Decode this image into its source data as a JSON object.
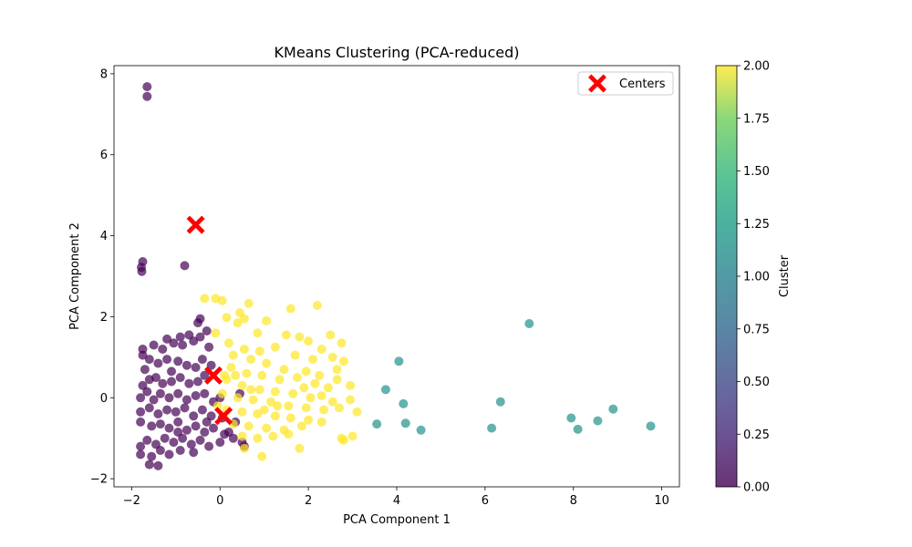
{
  "chart_data": {
    "type": "scatter",
    "title": "KMeans Clustering (PCA-reduced)",
    "xlabel": "PCA Component 1",
    "ylabel": "PCA Component 2",
    "xlim": [
      -2.4,
      10.4
    ],
    "ylim": [
      -2.2,
      8.2
    ],
    "xticks": [
      -2,
      0,
      2,
      4,
      6,
      8,
      10
    ],
    "yticks": [
      -2,
      0,
      2,
      4,
      6,
      8
    ],
    "colorbar": {
      "label": "Cluster",
      "range": [
        0.0,
        2.0
      ],
      "ticks": [
        "0.00",
        "0.25",
        "0.50",
        "0.75",
        "1.00",
        "1.25",
        "1.50",
        "1.75",
        "2.00"
      ]
    },
    "legend": {
      "position": "top-right",
      "entries": [
        "Centers"
      ]
    },
    "series": [
      {
        "cluster": 0,
        "color": "#440154",
        "points": [
          [
            -1.65,
            7.68
          ],
          [
            -1.65,
            7.44
          ],
          [
            -1.75,
            3.36
          ],
          [
            -1.78,
            3.22
          ],
          [
            -1.77,
            3.12
          ],
          [
            -0.8,
            3.26
          ],
          [
            -0.3,
            1.65
          ],
          [
            -0.5,
            1.85
          ],
          [
            -0.45,
            1.95
          ],
          [
            -0.7,
            1.55
          ],
          [
            -0.9,
            1.5
          ],
          [
            -1.2,
            1.45
          ],
          [
            -1.75,
            1.2
          ],
          [
            -1.75,
            1.05
          ],
          [
            -1.5,
            1.3
          ],
          [
            -1.3,
            1.2
          ],
          [
            -1.05,
            1.35
          ],
          [
            -0.85,
            1.3
          ],
          [
            -0.6,
            1.4
          ],
          [
            -0.45,
            1.5
          ],
          [
            -0.25,
            1.25
          ],
          [
            -1.6,
            0.95
          ],
          [
            -1.4,
            0.85
          ],
          [
            -1.2,
            0.95
          ],
          [
            -0.95,
            0.9
          ],
          [
            -0.75,
            0.8
          ],
          [
            -0.55,
            0.75
          ],
          [
            -0.4,
            0.95
          ],
          [
            -0.2,
            0.8
          ],
          [
            -1.75,
            0.3
          ],
          [
            -1.6,
            0.45
          ],
          [
            -1.45,
            0.5
          ],
          [
            -1.3,
            0.35
          ],
          [
            -1.1,
            0.4
          ],
          [
            -0.9,
            0.5
          ],
          [
            -0.7,
            0.35
          ],
          [
            -0.5,
            0.4
          ],
          [
            -0.35,
            0.55
          ],
          [
            -1.8,
            0.0
          ],
          [
            -1.65,
            0.15
          ],
          [
            -1.5,
            -0.05
          ],
          [
            -1.35,
            0.1
          ],
          [
            -1.15,
            0.0
          ],
          [
            -0.95,
            0.1
          ],
          [
            -0.75,
            -0.05
          ],
          [
            -0.55,
            0.05
          ],
          [
            -0.35,
            0.1
          ],
          [
            -0.15,
            -0.1
          ],
          [
            0.0,
            0.0
          ],
          [
            -1.8,
            -0.35
          ],
          [
            -1.6,
            -0.25
          ],
          [
            -1.4,
            -0.4
          ],
          [
            -1.2,
            -0.3
          ],
          [
            -1.0,
            -0.35
          ],
          [
            -0.8,
            -0.25
          ],
          [
            -0.6,
            -0.45
          ],
          [
            -0.4,
            -0.3
          ],
          [
            -0.2,
            -0.45
          ],
          [
            0.05,
            -0.5
          ],
          [
            -1.8,
            -0.6
          ],
          [
            -1.55,
            -0.7
          ],
          [
            -1.35,
            -0.65
          ],
          [
            -1.15,
            -0.75
          ],
          [
            -0.95,
            -0.6
          ],
          [
            -0.75,
            -0.8
          ],
          [
            -0.55,
            -0.7
          ],
          [
            -0.35,
            -0.85
          ],
          [
            -0.15,
            -0.75
          ],
          [
            0.1,
            -0.9
          ],
          [
            0.3,
            -1.0
          ],
          [
            0.5,
            -1.1
          ],
          [
            -1.8,
            -1.2
          ],
          [
            -1.65,
            -1.05
          ],
          [
            -1.45,
            -1.15
          ],
          [
            -1.25,
            -1.0
          ],
          [
            -1.05,
            -1.1
          ],
          [
            -0.85,
            -1.0
          ],
          [
            -0.65,
            -1.15
          ],
          [
            -0.45,
            -1.05
          ],
          [
            -0.25,
            -1.2
          ],
          [
            0.0,
            -1.1
          ],
          [
            -1.8,
            -1.4
          ],
          [
            -1.55,
            -1.45
          ],
          [
            -1.35,
            -1.3
          ],
          [
            -1.15,
            -1.4
          ],
          [
            -0.9,
            -1.3
          ],
          [
            -0.6,
            -1.35
          ],
          [
            -1.6,
            -1.65
          ],
          [
            -1.4,
            -1.68
          ],
          [
            0.55,
            -1.2
          ],
          [
            0.2,
            -0.85
          ],
          [
            0.35,
            -0.6
          ],
          [
            0.45,
            0.1
          ],
          [
            -1.7,
            0.7
          ],
          [
            -1.1,
            0.65
          ],
          [
            -0.3,
            -0.6
          ],
          [
            -0.95,
            -0.85
          ]
        ]
      },
      {
        "cluster": 1,
        "color": "#21918c",
        "points": [
          [
            7.0,
            1.83
          ],
          [
            4.05,
            0.9
          ],
          [
            3.75,
            0.2
          ],
          [
            4.15,
            -0.15
          ],
          [
            6.35,
            -0.1
          ],
          [
            3.55,
            -0.65
          ],
          [
            4.2,
            -0.63
          ],
          [
            4.55,
            -0.8
          ],
          [
            6.15,
            -0.75
          ],
          [
            7.95,
            -0.5
          ],
          [
            8.1,
            -0.78
          ],
          [
            8.55,
            -0.57
          ],
          [
            8.9,
            -0.28
          ],
          [
            9.75,
            -0.7
          ]
        ]
      },
      {
        "cluster": 2,
        "color": "#fde725",
        "points": [
          [
            -0.35,
            2.45
          ],
          [
            -0.1,
            2.45
          ],
          [
            0.05,
            2.4
          ],
          [
            0.65,
            2.33
          ],
          [
            1.6,
            2.2
          ],
          [
            2.2,
            2.28
          ],
          [
            0.15,
            1.98
          ],
          [
            0.45,
            2.1
          ],
          [
            0.55,
            1.95
          ],
          [
            1.05,
            1.9
          ],
          [
            0.4,
            1.85
          ],
          [
            0.85,
            1.6
          ],
          [
            1.5,
            1.55
          ],
          [
            1.8,
            1.5
          ],
          [
            2.0,
            1.4
          ],
          [
            2.5,
            1.55
          ],
          [
            2.75,
            1.35
          ],
          [
            2.3,
            1.2
          ],
          [
            -0.1,
            1.6
          ],
          [
            0.2,
            1.35
          ],
          [
            0.55,
            1.2
          ],
          [
            0.9,
            1.15
          ],
          [
            1.25,
            1.25
          ],
          [
            1.7,
            1.05
          ],
          [
            2.1,
            0.95
          ],
          [
            2.55,
            1.0
          ],
          [
            2.8,
            0.9
          ],
          [
            2.65,
            0.7
          ],
          [
            0.3,
            1.05
          ],
          [
            0.7,
            0.95
          ],
          [
            1.05,
            0.85
          ],
          [
            1.45,
            0.7
          ],
          [
            1.95,
            0.65
          ],
          [
            2.25,
            0.55
          ],
          [
            2.95,
            0.3
          ],
          [
            0.25,
            0.75
          ],
          [
            0.6,
            0.6
          ],
          [
            0.95,
            0.55
          ],
          [
            1.35,
            0.45
          ],
          [
            1.75,
            0.5
          ],
          [
            2.15,
            0.35
          ],
          [
            2.45,
            0.25
          ],
          [
            0.15,
            0.45
          ],
          [
            0.5,
            0.3
          ],
          [
            0.9,
            0.2
          ],
          [
            1.25,
            0.15
          ],
          [
            1.65,
            0.1
          ],
          [
            2.05,
            0.0
          ],
          [
            2.55,
            -0.1
          ],
          [
            2.95,
            -0.05
          ],
          [
            0.05,
            0.1
          ],
          [
            0.4,
            0.0
          ],
          [
            0.75,
            -0.05
          ],
          [
            1.15,
            -0.1
          ],
          [
            1.55,
            -0.2
          ],
          [
            1.95,
            -0.25
          ],
          [
            2.35,
            -0.3
          ],
          [
            2.7,
            -0.25
          ],
          [
            3.1,
            -0.35
          ],
          [
            0.15,
            -0.3
          ],
          [
            0.5,
            -0.35
          ],
          [
            0.85,
            -0.4
          ],
          [
            1.25,
            -0.45
          ],
          [
            1.6,
            -0.5
          ],
          [
            2.0,
            -0.55
          ],
          [
            2.3,
            -0.6
          ],
          [
            0.3,
            -0.65
          ],
          [
            0.65,
            -0.7
          ],
          [
            1.05,
            -0.75
          ],
          [
            1.45,
            -0.8
          ],
          [
            1.85,
            -0.7
          ],
          [
            0.5,
            -0.95
          ],
          [
            0.85,
            -1.0
          ],
          [
            1.2,
            -0.95
          ],
          [
            1.55,
            -0.9
          ],
          [
            1.8,
            -1.25
          ],
          [
            2.75,
            -1.0
          ],
          [
            2.8,
            -1.05
          ],
          [
            3.0,
            -0.95
          ],
          [
            0.95,
            -1.45
          ],
          [
            0.55,
            -1.25
          ],
          [
            -0.05,
            -0.2
          ],
          [
            0.1,
            0.55
          ],
          [
            1.3,
            -0.2
          ],
          [
            2.65,
            0.45
          ],
          [
            2.3,
            0.05
          ],
          [
            0.7,
            0.2
          ],
          [
            1.0,
            -0.3
          ],
          [
            0.35,
            0.55
          ],
          [
            1.9,
            0.25
          ]
        ]
      }
    ],
    "centers": [
      [
        -0.55,
        4.27
      ],
      [
        -0.15,
        0.55
      ],
      [
        0.08,
        -0.45
      ]
    ]
  }
}
